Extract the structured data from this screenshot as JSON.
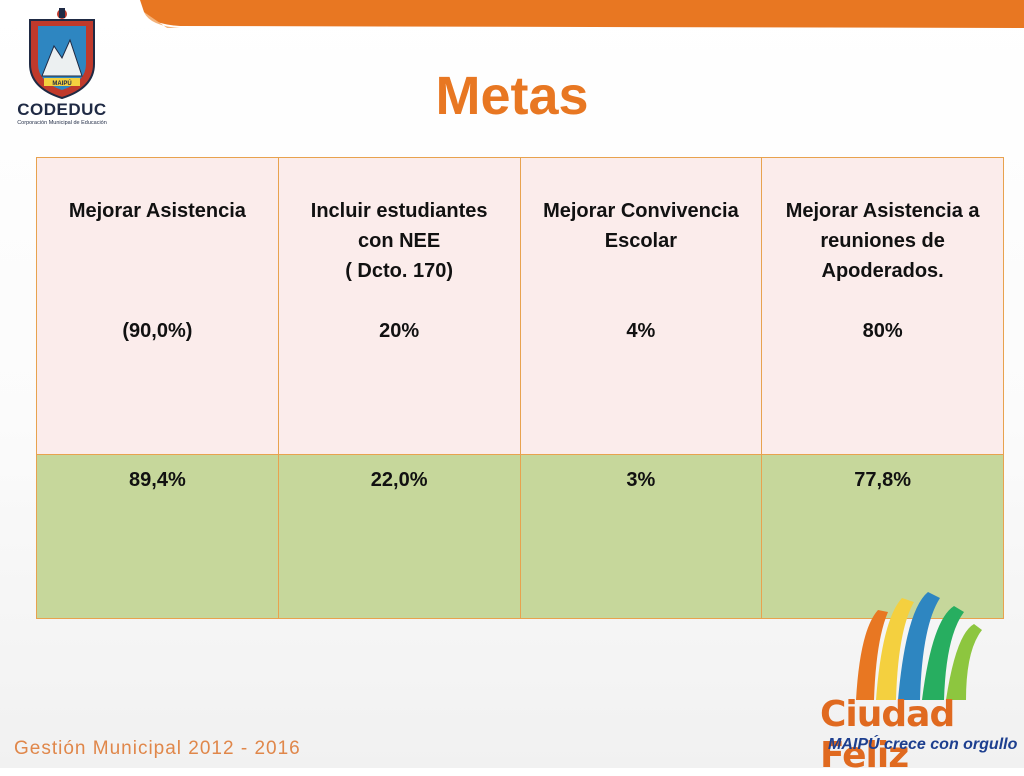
{
  "slide_title": "Metas",
  "header_logo": {
    "name": "CODEDUC",
    "subtitle": "Corporación Municipal de Educación",
    "emblem_text": "MAIPÚ"
  },
  "table": {
    "goals": [
      {
        "label_lines": [
          "Mejorar Asistencia"
        ],
        "target": "(90,0%)"
      },
      {
        "label_lines": [
          "Incluir estudiantes",
          "con NEE",
          "( Dcto. 170)"
        ],
        "target": "20%"
      },
      {
        "label_lines": [
          "Mejorar Convivencia",
          "Escolar"
        ],
        "target": "4%"
      },
      {
        "label_lines": [
          "Mejorar Asistencia a",
          "reuniones de",
          "Apoderados."
        ],
        "target": "80%"
      }
    ],
    "results": [
      "89,4%",
      "22,0%",
      "3%",
      "77,8%"
    ]
  },
  "footer_logo": {
    "name": "Ciudad Feliz",
    "tagline": "MAIPÚ crece con orgullo"
  },
  "footer_text": "Gestión Municipal 2012 - 2016",
  "colors": {
    "title": "#e87722",
    "goal_bg": "#fbeceb",
    "result_bg": "#c6d79b",
    "border": "#e8a24e"
  }
}
